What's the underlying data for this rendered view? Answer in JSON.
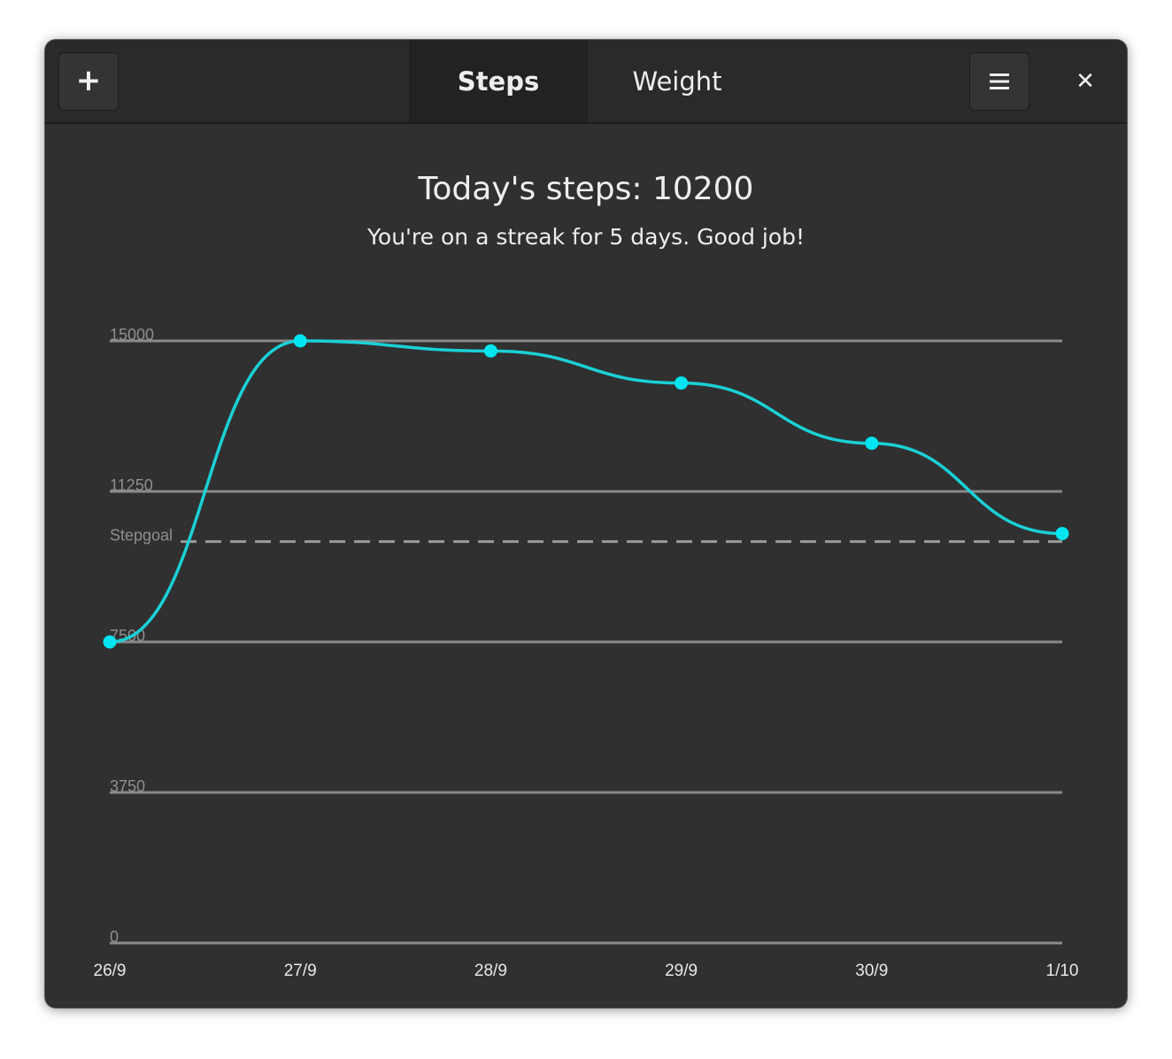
{
  "header": {
    "add_button": {
      "label": "+",
      "icon": "plus-icon"
    },
    "tabs": [
      {
        "label": "Steps",
        "active": true
      },
      {
        "label": "Weight",
        "active": false
      }
    ],
    "menu_button": {
      "icon": "hamburger-menu-icon"
    },
    "close_button": {
      "label": "✕",
      "icon": "close-icon"
    }
  },
  "main": {
    "title": "Today's steps: 10200",
    "subtitle": "You're on a streak for 5 days. Good job!"
  },
  "colors": {
    "window_bg": "#303030",
    "header_bg": "#2a2a2a",
    "line": "#1ad1d6",
    "point": "#00e5f0",
    "grid": "#8a8a8a"
  },
  "chart_data": {
    "type": "line",
    "categories": [
      "26/9",
      "27/9",
      "28/9",
      "29/9",
      "30/9",
      "1/10"
    ],
    "series": [
      {
        "name": "Steps",
        "values": [
          7500,
          15000,
          14750,
          13950,
          12450,
          10200
        ]
      }
    ],
    "y_ticks": [
      0,
      3750,
      7500,
      11250,
      15000
    ],
    "y_tick_labels": [
      "0",
      "3750",
      "7500",
      "11250",
      "15000"
    ],
    "ylim": [
      0,
      15000
    ],
    "goal": {
      "label": "Stepgoal",
      "value": 10000
    },
    "grid": true,
    "title": "",
    "xlabel": "",
    "ylabel": ""
  }
}
